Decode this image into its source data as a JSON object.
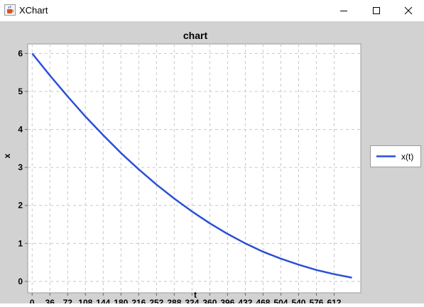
{
  "window": {
    "title": "XChart",
    "icon": "java-cup-icon"
  },
  "controls": {
    "minimize_icon": "minimize-icon",
    "maximize_icon": "maximize-icon",
    "close_icon": "close-icon"
  },
  "colors": {
    "plot_background": "#ffffff",
    "chart_background": "#d2d2d2",
    "series_line": "#2a4fd6",
    "grid": "#c8c8c8"
  },
  "chart_data": {
    "type": "line",
    "title": "chart",
    "xlabel": "t",
    "ylabel": "x",
    "xlim": [
      -9,
      666
    ],
    "ylim": [
      -0.3,
      6.25
    ],
    "xticks": [
      0,
      36,
      72,
      108,
      144,
      180,
      216,
      252,
      288,
      324,
      360,
      396,
      432,
      468,
      504,
      540,
      576,
      612
    ],
    "yticks": [
      0,
      1,
      2,
      3,
      4,
      5,
      6
    ],
    "grid": true,
    "legend_position": "right",
    "series": [
      {
        "name": "x(t)",
        "color": "#2a4fd6",
        "x": [
          0,
          36,
          72,
          108,
          144,
          180,
          216,
          252,
          288,
          324,
          360,
          396,
          432,
          468,
          504,
          540,
          576,
          612,
          648
        ],
        "y": [
          6.0,
          5.42,
          4.87,
          4.34,
          3.85,
          3.38,
          2.95,
          2.55,
          2.18,
          1.84,
          1.53,
          1.25,
          1.0,
          0.78,
          0.6,
          0.44,
          0.3,
          0.19,
          0.1
        ]
      }
    ]
  }
}
